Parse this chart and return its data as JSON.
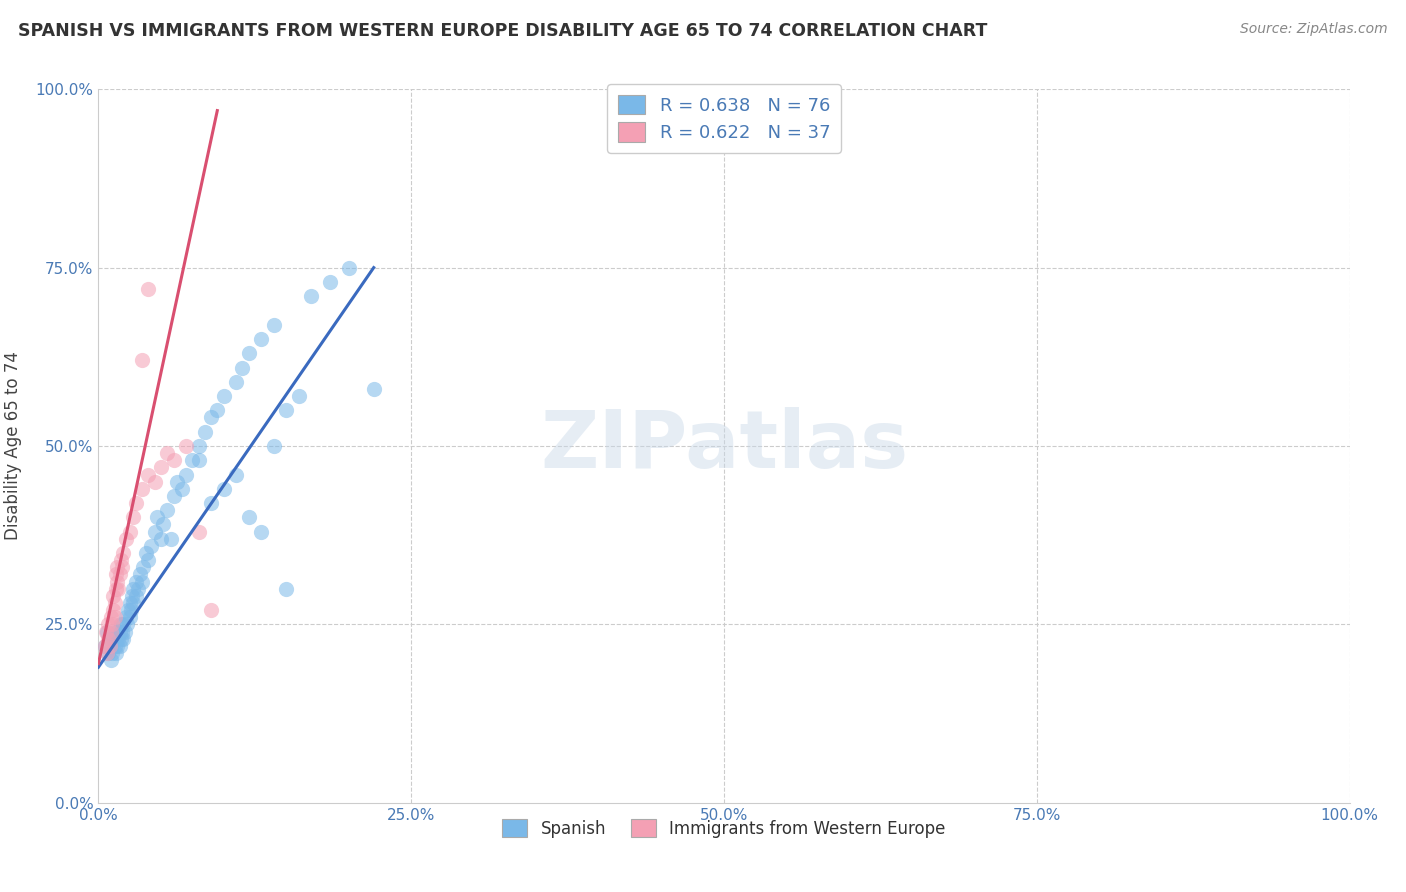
{
  "title": "SPANISH VS IMMIGRANTS FROM WESTERN EUROPE DISABILITY AGE 65 TO 74 CORRELATION CHART",
  "source": "Source: ZipAtlas.com",
  "ylabel": "Disability Age 65 to 74",
  "xlim": [
    0.0,
    1.0
  ],
  "ylim": [
    0.0,
    1.0
  ],
  "xticks": [
    0.0,
    0.25,
    0.5,
    0.75,
    1.0
  ],
  "yticks": [
    0.0,
    0.25,
    0.5,
    0.75,
    1.0
  ],
  "xticklabels": [
    "0.0%",
    "25.0%",
    "50.0%",
    "75.0%",
    "100.0%"
  ],
  "yticklabels": [
    "0.0%",
    "25.0%",
    "50.0%",
    "75.0%",
    "100.0%"
  ],
  "legend_r_blue": "R = 0.638",
  "legend_n_blue": "N = 76",
  "legend_r_pink": "R = 0.622",
  "legend_n_pink": "N = 37",
  "watermark": "ZIPatlas",
  "blue_color": "#7ab8e8",
  "pink_color": "#f4a0b4",
  "blue_line_color": "#3a6abf",
  "pink_line_color": "#d94f70",
  "label_blue": "Spanish",
  "label_pink": "Immigrants from Western Europe",
  "blue_scatter": [
    [
      0.005,
      0.22
    ],
    [
      0.007,
      0.24
    ],
    [
      0.008,
      0.21
    ],
    [
      0.009,
      0.23
    ],
    [
      0.01,
      0.2
    ],
    [
      0.01,
      0.22
    ],
    [
      0.011,
      0.21
    ],
    [
      0.012,
      0.23
    ],
    [
      0.013,
      0.22
    ],
    [
      0.013,
      0.24
    ],
    [
      0.014,
      0.21
    ],
    [
      0.014,
      0.23
    ],
    [
      0.015,
      0.22
    ],
    [
      0.015,
      0.24
    ],
    [
      0.016,
      0.23
    ],
    [
      0.017,
      0.22
    ],
    [
      0.017,
      0.24
    ],
    [
      0.018,
      0.23
    ],
    [
      0.018,
      0.25
    ],
    [
      0.019,
      0.24
    ],
    [
      0.02,
      0.23
    ],
    [
      0.02,
      0.25
    ],
    [
      0.021,
      0.24
    ],
    [
      0.022,
      0.26
    ],
    [
      0.023,
      0.25
    ],
    [
      0.024,
      0.27
    ],
    [
      0.025,
      0.26
    ],
    [
      0.025,
      0.28
    ],
    [
      0.026,
      0.27
    ],
    [
      0.027,
      0.29
    ],
    [
      0.028,
      0.28
    ],
    [
      0.028,
      0.3
    ],
    [
      0.03,
      0.29
    ],
    [
      0.03,
      0.31
    ],
    [
      0.032,
      0.3
    ],
    [
      0.033,
      0.32
    ],
    [
      0.035,
      0.31
    ],
    [
      0.036,
      0.33
    ],
    [
      0.038,
      0.35
    ],
    [
      0.04,
      0.34
    ],
    [
      0.042,
      0.36
    ],
    [
      0.045,
      0.38
    ],
    [
      0.047,
      0.4
    ],
    [
      0.05,
      0.37
    ],
    [
      0.052,
      0.39
    ],
    [
      0.055,
      0.41
    ],
    [
      0.058,
      0.37
    ],
    [
      0.06,
      0.43
    ],
    [
      0.063,
      0.45
    ],
    [
      0.067,
      0.44
    ],
    [
      0.07,
      0.46
    ],
    [
      0.075,
      0.48
    ],
    [
      0.08,
      0.5
    ],
    [
      0.085,
      0.52
    ],
    [
      0.09,
      0.54
    ],
    [
      0.095,
      0.55
    ],
    [
      0.1,
      0.57
    ],
    [
      0.11,
      0.59
    ],
    [
      0.115,
      0.61
    ],
    [
      0.12,
      0.63
    ],
    [
      0.13,
      0.65
    ],
    [
      0.14,
      0.67
    ],
    [
      0.15,
      0.55
    ],
    [
      0.16,
      0.57
    ],
    [
      0.17,
      0.71
    ],
    [
      0.185,
      0.73
    ],
    [
      0.2,
      0.75
    ],
    [
      0.22,
      0.58
    ],
    [
      0.08,
      0.48
    ],
    [
      0.09,
      0.42
    ],
    [
      0.1,
      0.44
    ],
    [
      0.11,
      0.46
    ],
    [
      0.12,
      0.4
    ],
    [
      0.13,
      0.38
    ],
    [
      0.14,
      0.5
    ],
    [
      0.15,
      0.3
    ]
  ],
  "pink_scatter": [
    [
      0.005,
      0.22
    ],
    [
      0.006,
      0.24
    ],
    [
      0.007,
      0.21
    ],
    [
      0.008,
      0.23
    ],
    [
      0.008,
      0.25
    ],
    [
      0.009,
      0.22
    ],
    [
      0.01,
      0.24
    ],
    [
      0.01,
      0.26
    ],
    [
      0.011,
      0.25
    ],
    [
      0.012,
      0.27
    ],
    [
      0.012,
      0.29
    ],
    [
      0.013,
      0.26
    ],
    [
      0.013,
      0.28
    ],
    [
      0.014,
      0.3
    ],
    [
      0.014,
      0.32
    ],
    [
      0.015,
      0.31
    ],
    [
      0.015,
      0.33
    ],
    [
      0.016,
      0.3
    ],
    [
      0.017,
      0.32
    ],
    [
      0.018,
      0.34
    ],
    [
      0.019,
      0.33
    ],
    [
      0.02,
      0.35
    ],
    [
      0.022,
      0.37
    ],
    [
      0.025,
      0.38
    ],
    [
      0.028,
      0.4
    ],
    [
      0.03,
      0.42
    ],
    [
      0.035,
      0.44
    ],
    [
      0.04,
      0.46
    ],
    [
      0.045,
      0.45
    ],
    [
      0.05,
      0.47
    ],
    [
      0.055,
      0.49
    ],
    [
      0.06,
      0.48
    ],
    [
      0.07,
      0.5
    ],
    [
      0.08,
      0.38
    ],
    [
      0.09,
      0.27
    ],
    [
      0.035,
      0.62
    ],
    [
      0.04,
      0.72
    ]
  ],
  "blue_line": [
    [
      0.0,
      0.19
    ],
    [
      0.22,
      0.75
    ]
  ],
  "pink_line": [
    [
      0.0,
      0.195
    ],
    [
      0.095,
      0.97
    ]
  ]
}
